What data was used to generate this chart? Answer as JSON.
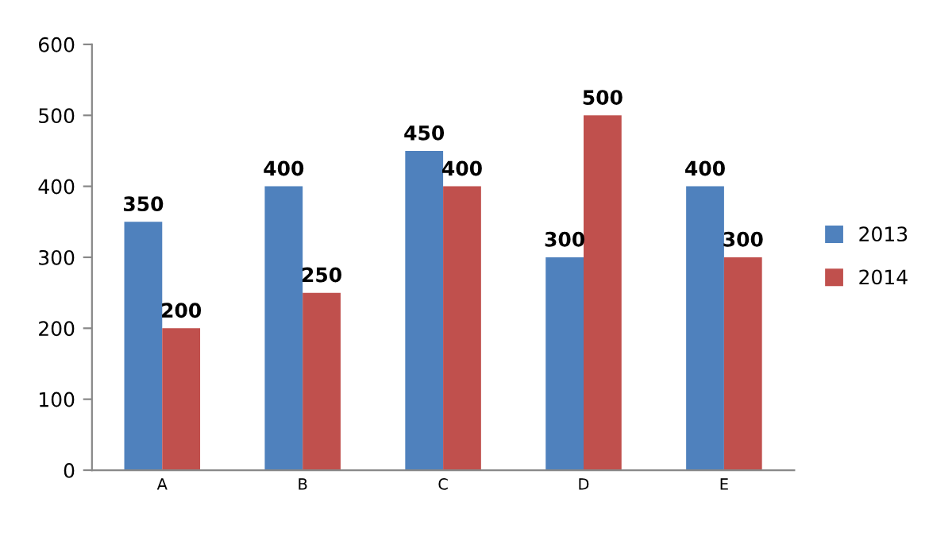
{
  "chart_data": {
    "type": "bar",
    "categories": [
      "A",
      "B",
      "C",
      "D",
      "E"
    ],
    "series": [
      {
        "name": "2013",
        "color": "#4f81bd",
        "values": [
          350,
          400,
          450,
          300,
          400
        ]
      },
      {
        "name": "2014",
        "color": "#c0504d",
        "values": [
          200,
          250,
          400,
          500,
          300
        ]
      }
    ],
    "ylim": [
      0,
      600
    ],
    "yticks": [
      0,
      100,
      200,
      300,
      400,
      500,
      600
    ],
    "data_labels": true,
    "grid": false,
    "legend": "right"
  }
}
